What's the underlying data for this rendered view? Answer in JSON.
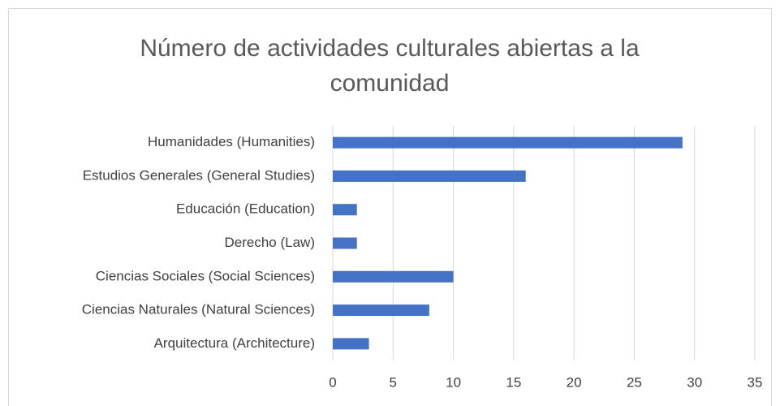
{
  "chart_data": {
    "type": "bar",
    "orientation": "horizontal",
    "title": "Número de actividades culturales abiertas a la comunidad",
    "categories": [
      "Humanidades (Humanities)",
      "Estudios Generales (General Studies)",
      "Educación (Education)",
      "Derecho (Law)",
      "Ciencias Sociales (Social Sciences)",
      "Ciencias Naturales (Natural Sciences)",
      "Arquitectura (Architecture)"
    ],
    "values": [
      29,
      16,
      2,
      2,
      10,
      8,
      3
    ],
    "color": "#4472c4",
    "xlim": [
      0,
      35
    ],
    "xticks": [
      0,
      5,
      10,
      15,
      20,
      25,
      30,
      35
    ],
    "grid": true
  }
}
